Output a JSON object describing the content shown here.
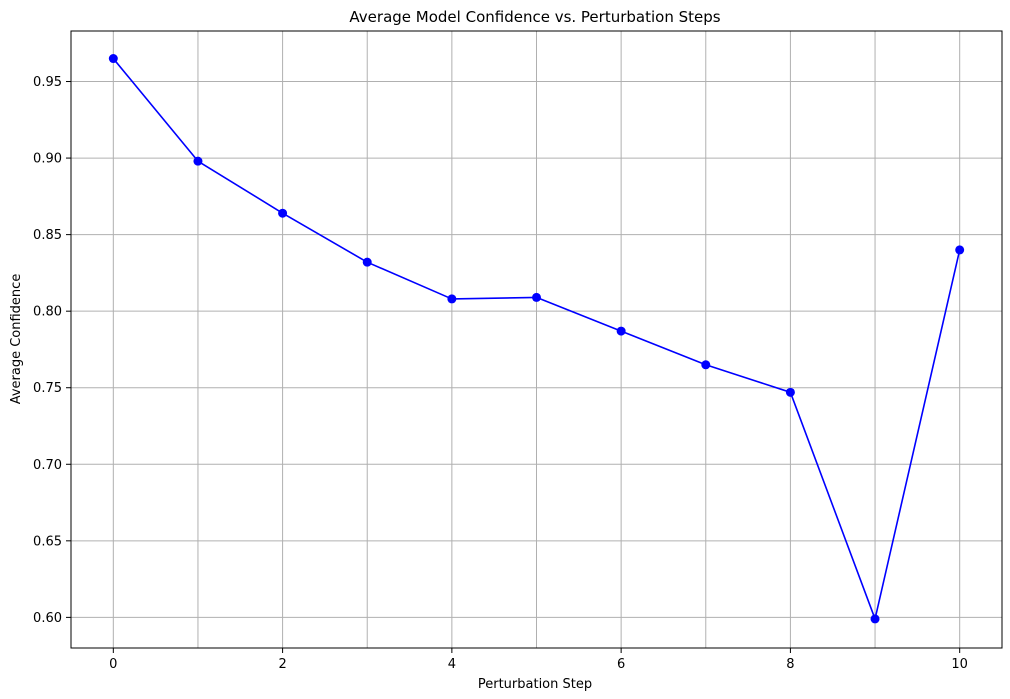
{
  "chart_data": {
    "type": "line",
    "title": "Average Model Confidence vs. Perturbation Steps",
    "xlabel": "Perturbation Step",
    "ylabel": "Average Confidence",
    "x": [
      0,
      1,
      2,
      3,
      4,
      5,
      6,
      7,
      8,
      9,
      10
    ],
    "series": [
      {
        "values": [
          0.965,
          0.898,
          0.864,
          0.832,
          0.808,
          0.809,
          0.787,
          0.765,
          0.747,
          0.599,
          0.84
        ],
        "color": "#0000ff",
        "marker": "circle"
      }
    ],
    "xlim": [
      -0.5,
      10.5
    ],
    "ylim": [
      0.58,
      0.983
    ],
    "xticks": [
      0,
      2,
      4,
      6,
      8,
      10
    ],
    "xtick_labels": [
      "0",
      "2",
      "4",
      "6",
      "8",
      "10"
    ],
    "yticks": [
      0.6,
      0.65,
      0.7,
      0.75,
      0.8,
      0.85,
      0.9,
      0.95
    ],
    "ytick_labels": [
      "0.60",
      "0.65",
      "0.70",
      "0.75",
      "0.80",
      "0.85",
      "0.90",
      "0.95"
    ],
    "x_grid_values": [
      0,
      1,
      2,
      3,
      4,
      5,
      6,
      7,
      8,
      9,
      10
    ],
    "grid": true,
    "grid_color": "#b0b0b0"
  }
}
